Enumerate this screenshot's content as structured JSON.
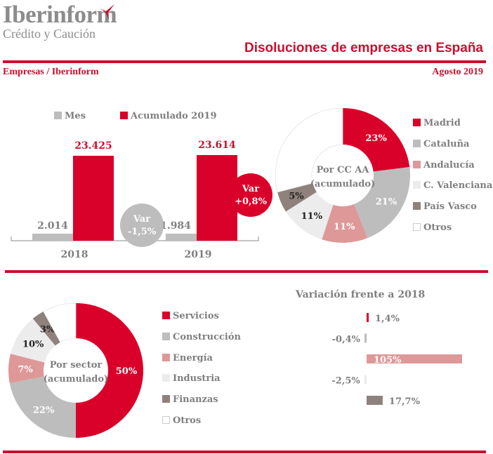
{
  "header": {
    "logo_name": "Iberinform",
    "logo_sub": "Crédito y Caución",
    "title": "Disoluciones de empresas en España",
    "source": "Empresas / Iberinform",
    "period": "Agosto 2019"
  },
  "colors": {
    "brand_red": "#c8102e",
    "bar_red": "#d9002a",
    "grey": "#bdbdbd",
    "pink": "#de9898",
    "light": "#ececec",
    "brown": "#8f817b",
    "white": "#ffffff",
    "text_grey": "#7f7f7f"
  },
  "chart_data": [
    {
      "type": "bar",
      "title": "",
      "categories": [
        "2018",
        "2019"
      ],
      "series": [
        {
          "name": "Mes",
          "values": [
            2014,
            1984
          ],
          "labels": [
            "2.014",
            "1.984"
          ],
          "color": "#bdbdbd"
        },
        {
          "name": "Acumulado 2019",
          "values": [
            23425,
            23614
          ],
          "labels": [
            "23.425",
            "23.614"
          ],
          "color": "#d9002a"
        }
      ],
      "legend": [
        "Mes",
        "Acumulado 2019"
      ],
      "legend_position": "top",
      "annotations": [
        {
          "label": "Var",
          "value": "-1,5%",
          "series": "Mes"
        },
        {
          "label": "Var",
          "value": "+0,8%",
          "series": "Acumulado 2019"
        }
      ],
      "ylim": [
        0,
        25000
      ]
    },
    {
      "type": "pie",
      "title": "Por CC AA (acumulado)",
      "center_label": [
        "Por CC AA",
        "(acumulado)"
      ],
      "categories": [
        "Madrid",
        "Cataluña",
        "Andalucía",
        "C. Valenciana",
        "País Vasco",
        "Otros"
      ],
      "values": [
        23,
        21,
        11,
        11,
        5,
        29
      ],
      "labels": [
        "23%",
        "21%",
        "11%",
        "11%",
        "5%",
        ""
      ],
      "colors": [
        "#d9002a",
        "#bdbdbd",
        "#de9898",
        "#ececec",
        "#8f817b",
        "#ffffff"
      ],
      "label_colors": [
        "#ffffff",
        "#ffffff",
        "#ffffff",
        "#222222",
        "#222222",
        ""
      ],
      "legend_position": "right"
    },
    {
      "type": "pie",
      "title": "Por sector (acumulado)",
      "center_label": [
        "Por sector",
        "(acumulado)"
      ],
      "categories": [
        "Servicios",
        "Construcción",
        "Energía",
        "Industria",
        "Finanzas",
        "Otros"
      ],
      "values": [
        50,
        22,
        7,
        10,
        3,
        8
      ],
      "labels": [
        "50%",
        "22%",
        "7%",
        "10%",
        "3%",
        ""
      ],
      "colors": [
        "#d9002a",
        "#bdbdbd",
        "#de9898",
        "#ececec",
        "#8f817b",
        "#ffffff"
      ],
      "label_colors": [
        "#ffffff",
        "#ffffff",
        "#ffffff",
        "#222222",
        "#222222",
        ""
      ],
      "legend_position": "right"
    },
    {
      "type": "bar",
      "orientation": "horizontal",
      "title": "Variación frente a 2018",
      "categories": [
        "Servicios",
        "Construcción",
        "Energía",
        "Industria",
        "Finanzas"
      ],
      "values": [
        1.4,
        -0.4,
        105,
        -2.5,
        17.7
      ],
      "labels": [
        "1,4%",
        "-0,4%",
        "105%",
        "-2,5%",
        "17,7%"
      ],
      "colors": [
        "#d9002a",
        "#bdbdbd",
        "#de9898",
        "#ececec",
        "#8f817b"
      ],
      "xlim": [
        -5,
        105
      ]
    }
  ]
}
